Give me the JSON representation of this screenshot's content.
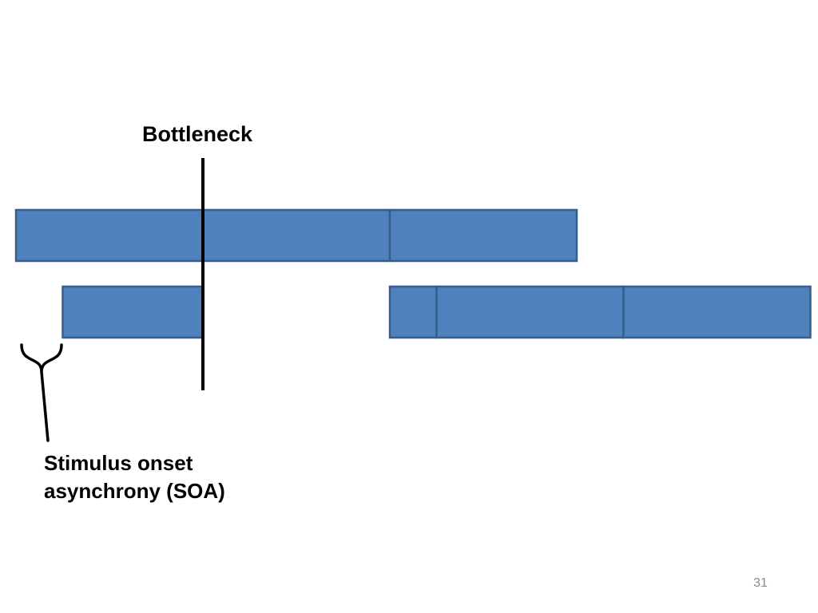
{
  "labels": {
    "bottleneck": "Bottleneck",
    "soa_line1": "Stimulus onset",
    "soa_line2": "asynchrony (SOA)"
  },
  "slide_number": "31",
  "colors": {
    "bar_fill": "#4f81bd",
    "bar_stroke": "#385d8a",
    "line": "#000000",
    "slide_number": "#8a8a8a"
  },
  "diagram": {
    "tasks": [
      {
        "name": "task-1",
        "onset": 0,
        "stages": [
          4,
          2
        ]
      },
      {
        "name": "task-2",
        "onset": 0.5,
        "gap_after_stage": 1,
        "gap_end": 4,
        "stages": [
          1.5,
          0.5,
          2,
          2
        ]
      }
    ],
    "bottleneck_at": 2
  }
}
